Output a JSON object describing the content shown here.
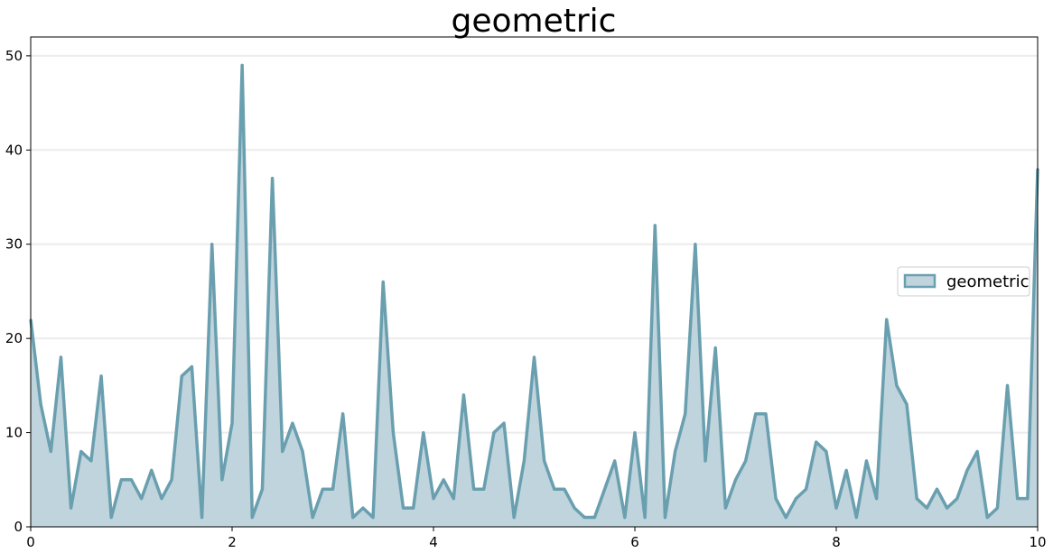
{
  "chart_data": {
    "type": "area",
    "title": "geometric",
    "xlabel": "",
    "ylabel": "",
    "xlim": [
      0,
      10
    ],
    "ylim": [
      0,
      52
    ],
    "x_ticks": [
      0,
      2,
      4,
      6,
      8,
      10
    ],
    "y_ticks": [
      0,
      10,
      20,
      30,
      40,
      50
    ],
    "grid": "horizontal",
    "legend_position": "center-right",
    "colors": {
      "line": "#6a9faf",
      "fill": "#bfd4dc",
      "grid": "#ececec"
    },
    "series": [
      {
        "name": "geometric",
        "x_start": 0,
        "x_step": 0.1,
        "values": [
          22,
          13,
          8,
          18,
          2,
          8,
          7,
          16,
          1,
          5,
          5,
          3,
          6,
          3,
          5,
          16,
          17,
          1,
          30,
          5,
          11,
          49,
          1,
          4,
          37,
          8,
          11,
          8,
          1,
          4,
          4,
          12,
          1,
          2,
          1,
          26,
          10,
          2,
          2,
          10,
          3,
          5,
          3,
          14,
          4,
          4,
          10,
          11,
          1,
          7,
          18,
          7,
          4,
          4,
          2,
          1,
          1,
          4,
          7,
          1,
          10,
          1,
          32,
          1,
          8,
          12,
          30,
          7,
          19,
          2,
          5,
          7,
          12,
          12,
          3,
          1,
          3,
          4,
          9,
          8,
          2,
          6,
          1,
          7,
          3,
          22,
          15,
          13,
          3,
          2,
          4,
          2,
          3,
          6,
          8,
          1,
          2,
          15,
          3,
          3,
          38
        ]
      }
    ]
  }
}
